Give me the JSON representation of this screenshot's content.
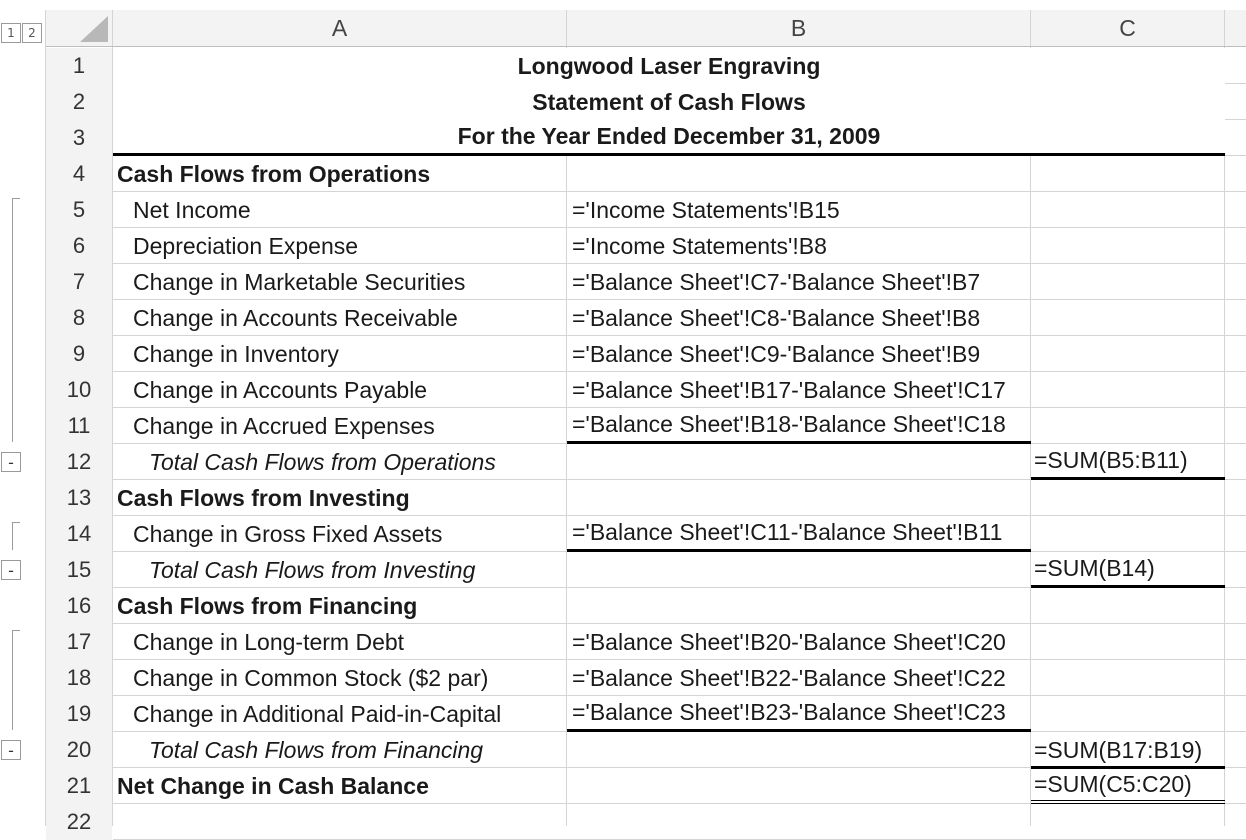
{
  "outline": {
    "levels": [
      "1",
      "2"
    ],
    "collapse_symbol": "-"
  },
  "columns": [
    "A",
    "B",
    "C"
  ],
  "rows": [
    {
      "num": "1",
      "a": "",
      "b": "Longwood Laser Engraving",
      "c": "",
      "title": true
    },
    {
      "num": "2",
      "a": "",
      "b": "Statement of Cash Flows",
      "c": "",
      "title": true
    },
    {
      "num": "3",
      "a": "",
      "b": "For the Year Ended December 31, 2009",
      "c": "",
      "title": true
    },
    {
      "num": "4",
      "a": "Cash Flows from Operations",
      "b": "",
      "c": "",
      "style": "section"
    },
    {
      "num": "5",
      "a": "Net Income",
      "b": "='Income Statements'!B15",
      "c": "",
      "style": "item"
    },
    {
      "num": "6",
      "a": "Depreciation Expense",
      "b": "='Income Statements'!B8",
      "c": "",
      "style": "item"
    },
    {
      "num": "7",
      "a": "Change in Marketable Securities",
      "b": "='Balance Sheet'!C7-'Balance Sheet'!B7",
      "c": "",
      "style": "item"
    },
    {
      "num": "8",
      "a": "Change in Accounts Receivable",
      "b": "='Balance Sheet'!C8-'Balance Sheet'!B8",
      "c": "",
      "style": "item"
    },
    {
      "num": "9",
      "a": "Change in Inventory",
      "b": "='Balance Sheet'!C9-'Balance Sheet'!B9",
      "c": "",
      "style": "item"
    },
    {
      "num": "10",
      "a": "Change in Accounts Payable",
      "b": "='Balance Sheet'!B17-'Balance Sheet'!C17",
      "c": "",
      "style": "item"
    },
    {
      "num": "11",
      "a": "Change in Accrued Expenses",
      "b": "='Balance Sheet'!B18-'Balance Sheet'!C18",
      "c": "",
      "style": "item",
      "b_border": "thick"
    },
    {
      "num": "12",
      "a": "Total Cash Flows from Operations",
      "b": "",
      "c": "=SUM(B5:B11)",
      "style": "total",
      "c_border": "thick"
    },
    {
      "num": "13",
      "a": "Cash Flows from Investing",
      "b": "",
      "c": "",
      "style": "section"
    },
    {
      "num": "14",
      "a": "Change in Gross Fixed Assets",
      "b": "='Balance Sheet'!C11-'Balance Sheet'!B11",
      "c": "",
      "style": "item",
      "b_border": "thick"
    },
    {
      "num": "15",
      "a": "Total Cash Flows from Investing",
      "b": "",
      "c": "=SUM(B14)",
      "style": "total",
      "c_border": "thick"
    },
    {
      "num": "16",
      "a": "Cash Flows from Financing",
      "b": "",
      "c": "",
      "style": "section"
    },
    {
      "num": "17",
      "a": "Change in Long-term Debt",
      "b": "='Balance Sheet'!B20-'Balance Sheet'!C20",
      "c": "",
      "style": "item"
    },
    {
      "num": "18",
      "a": "Change in Common Stock ($2 par)",
      "b": "='Balance Sheet'!B22-'Balance Sheet'!C22",
      "c": "",
      "style": "item"
    },
    {
      "num": "19",
      "a": "Change in Additional Paid-in-Capital",
      "b": "='Balance Sheet'!B23-'Balance Sheet'!C23",
      "c": "",
      "style": "item",
      "b_border": "thick"
    },
    {
      "num": "20",
      "a": "Total Cash Flows from Financing",
      "b": "",
      "c": "=SUM(B17:B19)",
      "style": "total"
    },
    {
      "num": "21",
      "a": "Net Change in Cash Balance",
      "b": "",
      "c": "=SUM(C5:C20)",
      "style": "section",
      "c_border": "double"
    },
    {
      "num": "22",
      "a": "",
      "b": "",
      "c": ""
    }
  ]
}
